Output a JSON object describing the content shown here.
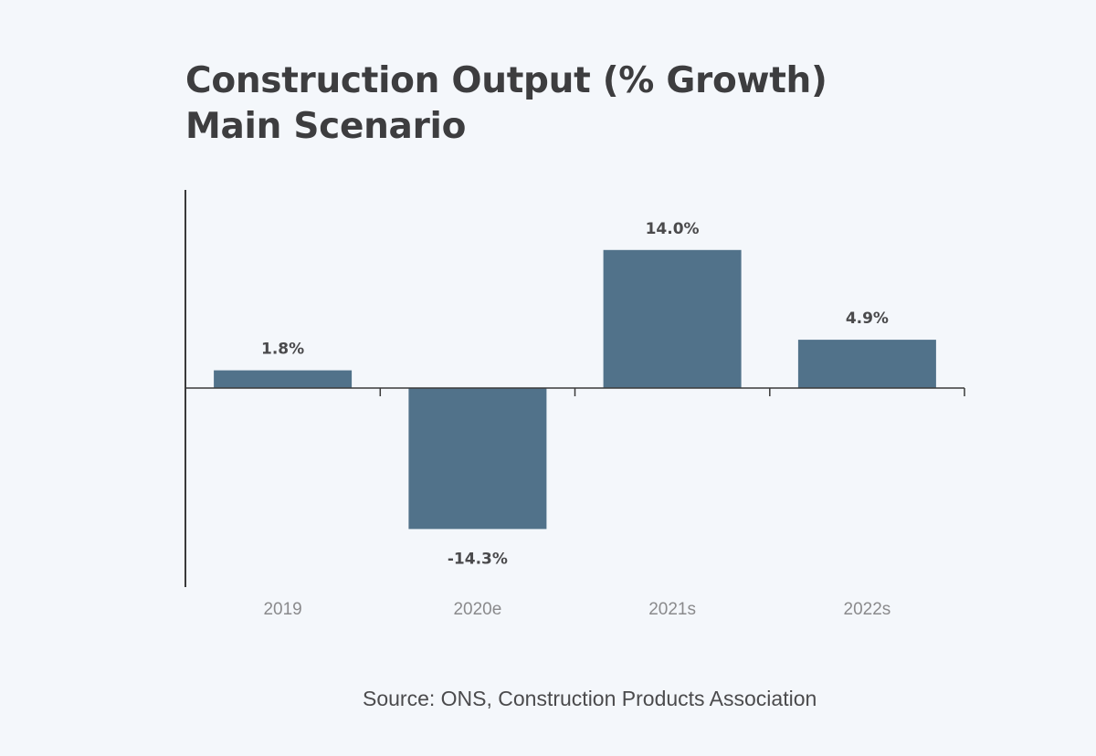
{
  "header": {
    "title_line1": "Construction Output (% Growth)",
    "title_line2": "Main Scenario"
  },
  "footer": {
    "source": "Source: ONS, Construction Products Association"
  },
  "colors": {
    "bar": "#51728a",
    "axis": "#3a3a3a",
    "background": "#f4f7fb"
  },
  "chart_data": {
    "type": "bar",
    "title": "Construction Output (% Growth) Main Scenario",
    "categories": [
      "2019",
      "2020e",
      "2021s",
      "2022s"
    ],
    "values": [
      1.8,
      -14.3,
      14.0,
      4.9
    ],
    "value_labels": [
      "1.8%",
      "-14.3%",
      "14.0%",
      "4.9%"
    ],
    "xlabel": "",
    "ylabel": "",
    "ylim": [
      -20,
      20
    ],
    "grid": false,
    "legend": "none"
  }
}
